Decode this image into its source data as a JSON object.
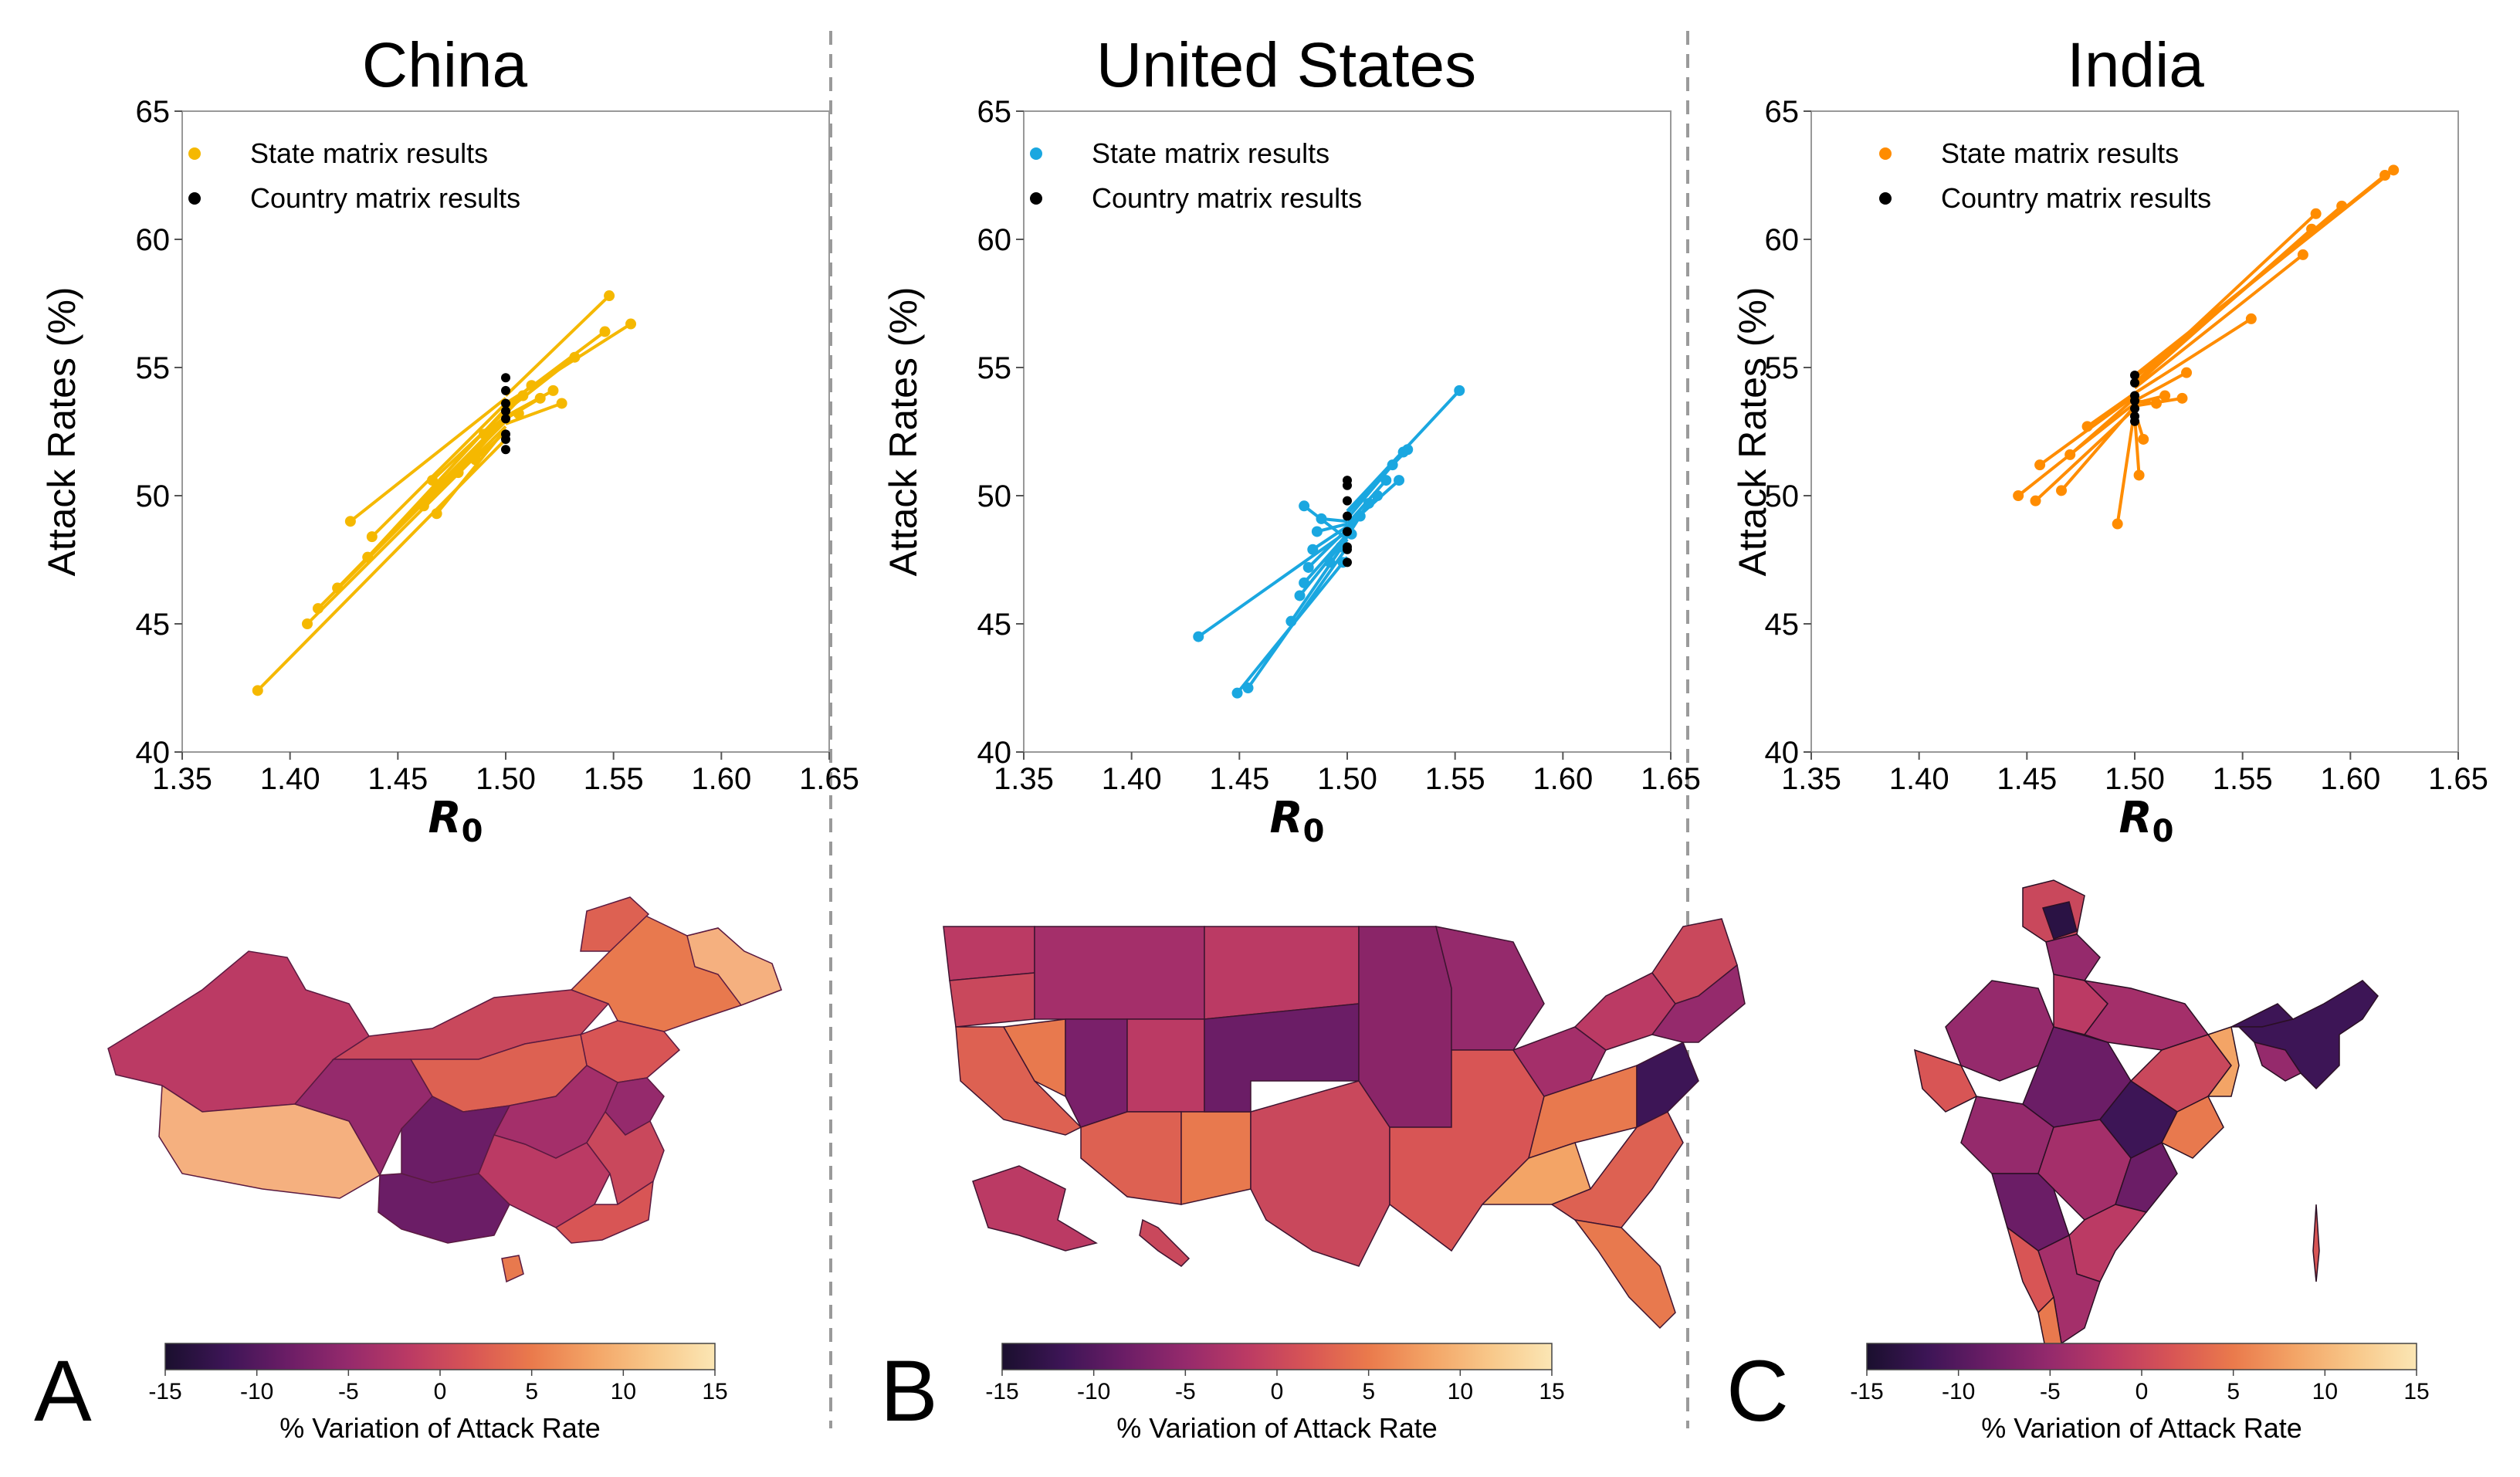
{
  "chart_data": [
    {
      "type": "scatter",
      "panel_label": "A",
      "title": "China",
      "xlabel": "R",
      "xlabel_sub": "0",
      "ylabel": "Attack Rates (%)",
      "xlim": [
        1.35,
        1.65
      ],
      "ylim": [
        40,
        65
      ],
      "xticks": [
        "1.35",
        "1.40",
        "1.45",
        "1.50",
        "1.55",
        "1.60",
        "1.65"
      ],
      "yticks": [
        "40",
        "45",
        "50",
        "55",
        "60",
        "65"
      ],
      "legend": [
        "State matrix results",
        "Country matrix results"
      ],
      "state_color": "#f5b800",
      "country_color": "#000000",
      "state_points": [
        [
          1.385,
          42.4
        ],
        [
          1.408,
          45.0
        ],
        [
          1.413,
          45.6
        ],
        [
          1.422,
          46.4
        ],
        [
          1.428,
          49.0
        ],
        [
          1.436,
          47.6
        ],
        [
          1.438,
          48.4
        ],
        [
          1.462,
          49.6
        ],
        [
          1.466,
          50.6
        ],
        [
          1.468,
          49.3
        ],
        [
          1.478,
          50.9
        ],
        [
          1.486,
          51.4
        ],
        [
          1.49,
          52.4
        ],
        [
          1.508,
          53.9
        ],
        [
          1.512,
          54.3
        ],
        [
          1.516,
          53.8
        ],
        [
          1.522,
          54.1
        ],
        [
          1.526,
          53.6
        ],
        [
          1.532,
          55.4
        ],
        [
          1.546,
          56.4
        ],
        [
          1.548,
          57.8
        ],
        [
          1.558,
          56.7
        ],
        [
          1.506,
          53.2
        ]
      ],
      "country_points": [
        [
          1.5,
          51.8
        ],
        [
          1.5,
          52.4
        ],
        [
          1.5,
          53.0
        ],
        [
          1.5,
          53.6
        ],
        [
          1.5,
          54.1
        ],
        [
          1.5,
          54.6
        ],
        [
          1.5,
          52.2
        ],
        [
          1.5,
          53.3
        ]
      ],
      "links": [
        [
          [
            1.385,
            42.4
          ],
          [
            1.5,
            52.2
          ]
        ],
        [
          [
            1.408,
            45.0
          ],
          [
            1.5,
            52.7
          ]
        ],
        [
          [
            1.413,
            45.6
          ],
          [
            1.5,
            52.9
          ]
        ],
        [
          [
            1.422,
            46.4
          ],
          [
            1.5,
            53.1
          ]
        ],
        [
          [
            1.428,
            49.0
          ],
          [
            1.5,
            53.8
          ]
        ],
        [
          [
            1.436,
            47.6
          ],
          [
            1.5,
            53.4
          ]
        ],
        [
          [
            1.438,
            48.4
          ],
          [
            1.5,
            53.6
          ]
        ],
        [
          [
            1.462,
            49.6
          ],
          [
            1.5,
            53.0
          ]
        ],
        [
          [
            1.466,
            50.6
          ],
          [
            1.5,
            53.3
          ]
        ],
        [
          [
            1.468,
            49.3
          ],
          [
            1.5,
            52.6
          ]
        ],
        [
          [
            1.478,
            50.9
          ],
          [
            1.5,
            53.0
          ]
        ],
        [
          [
            1.486,
            51.4
          ],
          [
            1.5,
            52.5
          ]
        ],
        [
          [
            1.49,
            52.4
          ],
          [
            1.5,
            53.1
          ]
        ],
        [
          [
            1.508,
            53.9
          ],
          [
            1.5,
            53.2
          ]
        ],
        [
          [
            1.512,
            54.3
          ],
          [
            1.5,
            53.4
          ]
        ],
        [
          [
            1.516,
            53.8
          ],
          [
            1.5,
            53.0
          ]
        ],
        [
          [
            1.522,
            54.1
          ],
          [
            1.5,
            53.1
          ]
        ],
        [
          [
            1.526,
            53.6
          ],
          [
            1.5,
            52.8
          ]
        ],
        [
          [
            1.532,
            55.4
          ],
          [
            1.5,
            53.3
          ]
        ],
        [
          [
            1.546,
            56.4
          ],
          [
            1.5,
            53.5
          ]
        ],
        [
          [
            1.548,
            57.8
          ],
          [
            1.5,
            53.9
          ]
        ],
        [
          [
            1.558,
            56.7
          ],
          [
            1.5,
            53.6
          ]
        ]
      ]
    },
    {
      "type": "scatter",
      "panel_label": "B",
      "title": "United States",
      "xlabel": "R",
      "xlabel_sub": "0",
      "ylabel": "Attack Rates (%)",
      "xlim": [
        1.35,
        1.65
      ],
      "ylim": [
        40,
        65
      ],
      "xticks": [
        "1.35",
        "1.40",
        "1.45",
        "1.50",
        "1.55",
        "1.60",
        "1.65"
      ],
      "yticks": [
        "40",
        "45",
        "50",
        "55",
        "60",
        "65"
      ],
      "legend": [
        "State matrix results",
        "Country matrix results"
      ],
      "state_color": "#1aa7e0",
      "country_color": "#000000",
      "state_points": [
        [
          1.431,
          44.5
        ],
        [
          1.449,
          42.3
        ],
        [
          1.454,
          42.5
        ],
        [
          1.474,
          45.1
        ],
        [
          1.478,
          46.1
        ],
        [
          1.48,
          46.6
        ],
        [
          1.482,
          47.2
        ],
        [
          1.484,
          47.9
        ],
        [
          1.48,
          49.6
        ],
        [
          1.486,
          48.6
        ],
        [
          1.488,
          49.1
        ],
        [
          1.492,
          47.4
        ],
        [
          1.497,
          48.0
        ],
        [
          1.506,
          49.2
        ],
        [
          1.51,
          49.7
        ],
        [
          1.514,
          50.0
        ],
        [
          1.518,
          50.6
        ],
        [
          1.521,
          51.2
        ],
        [
          1.526,
          51.7
        ],
        [
          1.524,
          50.6
        ],
        [
          1.528,
          51.8
        ],
        [
          1.552,
          54.1
        ],
        [
          1.498,
          47.4
        ],
        [
          1.502,
          48.5
        ]
      ],
      "country_points": [
        [
          1.5,
          47.4
        ],
        [
          1.5,
          48.0
        ],
        [
          1.5,
          48.6
        ],
        [
          1.5,
          49.2
        ],
        [
          1.5,
          49.8
        ],
        [
          1.5,
          50.4
        ],
        [
          1.5,
          50.6
        ],
        [
          1.5,
          47.9
        ]
      ],
      "links": [
        [
          [
            1.431,
            44.5
          ],
          [
            1.5,
            48.6
          ]
        ],
        [
          [
            1.449,
            42.3
          ],
          [
            1.5,
            47.6
          ]
        ],
        [
          [
            1.454,
            42.5
          ],
          [
            1.5,
            48.0
          ]
        ],
        [
          [
            1.474,
            45.1
          ],
          [
            1.5,
            48.3
          ]
        ],
        [
          [
            1.478,
            46.1
          ],
          [
            1.5,
            48.4
          ]
        ],
        [
          [
            1.48,
            46.6
          ],
          [
            1.5,
            48.5
          ]
        ],
        [
          [
            1.482,
            47.2
          ],
          [
            1.5,
            48.7
          ]
        ],
        [
          [
            1.484,
            47.9
          ],
          [
            1.5,
            48.8
          ]
        ],
        [
          [
            1.48,
            49.6
          ],
          [
            1.5,
            48.3
          ]
        ],
        [
          [
            1.486,
            48.6
          ],
          [
            1.5,
            48.9
          ]
        ],
        [
          [
            1.488,
            49.1
          ],
          [
            1.5,
            49.0
          ]
        ],
        [
          [
            1.506,
            49.2
          ],
          [
            1.5,
            48.4
          ]
        ],
        [
          [
            1.51,
            49.7
          ],
          [
            1.5,
            48.6
          ]
        ],
        [
          [
            1.514,
            50.0
          ],
          [
            1.5,
            48.7
          ]
        ],
        [
          [
            1.518,
            50.6
          ],
          [
            1.5,
            48.9
          ]
        ],
        [
          [
            1.521,
            51.2
          ],
          [
            1.5,
            49.1
          ]
        ],
        [
          [
            1.526,
            51.7
          ],
          [
            1.5,
            49.3
          ]
        ],
        [
          [
            1.524,
            50.6
          ],
          [
            1.5,
            48.8
          ]
        ],
        [
          [
            1.528,
            51.8
          ],
          [
            1.5,
            49.4
          ]
        ],
        [
          [
            1.552,
            54.1
          ],
          [
            1.5,
            49.4
          ]
        ]
      ]
    },
    {
      "type": "scatter",
      "panel_label": "C",
      "title": "India",
      "xlabel": "R",
      "xlabel_sub": "0",
      "ylabel": "Attack Rates (%)",
      "xlim": [
        1.35,
        1.65
      ],
      "ylim": [
        40,
        65
      ],
      "xticks": [
        "1.35",
        "1.40",
        "1.45",
        "1.50",
        "1.55",
        "1.60",
        "1.65"
      ],
      "yticks": [
        "40",
        "45",
        "50",
        "55",
        "60",
        "65"
      ],
      "legend": [
        "State matrix results",
        "Country matrix results"
      ],
      "state_color": "#ff8c00",
      "country_color": "#000000",
      "state_points": [
        [
          1.446,
          50.0
        ],
        [
          1.454,
          49.8
        ],
        [
          1.456,
          51.2
        ],
        [
          1.466,
          50.2
        ],
        [
          1.47,
          51.6
        ],
        [
          1.478,
          52.7
        ],
        [
          1.492,
          48.9
        ],
        [
          1.502,
          50.8
        ],
        [
          1.504,
          52.2
        ],
        [
          1.51,
          53.6
        ],
        [
          1.514,
          53.9
        ],
        [
          1.522,
          53.8
        ],
        [
          1.524,
          54.8
        ],
        [
          1.554,
          56.9
        ],
        [
          1.578,
          59.4
        ],
        [
          1.582,
          60.4
        ],
        [
          1.584,
          61.0
        ],
        [
          1.596,
          61.3
        ],
        [
          1.616,
          62.5
        ],
        [
          1.62,
          62.7
        ]
      ],
      "country_points": [
        [
          1.5,
          52.9
        ],
        [
          1.5,
          53.4
        ],
        [
          1.5,
          53.9
        ],
        [
          1.5,
          54.4
        ],
        [
          1.5,
          54.7
        ],
        [
          1.5,
          53.1
        ],
        [
          1.5,
          53.7
        ]
      ],
      "links": [
        [
          [
            1.446,
            50.0
          ],
          [
            1.5,
            53.6
          ]
        ],
        [
          [
            1.454,
            49.8
          ],
          [
            1.5,
            53.4
          ]
        ],
        [
          [
            1.456,
            51.2
          ],
          [
            1.5,
            53.9
          ]
        ],
        [
          [
            1.466,
            50.2
          ],
          [
            1.5,
            53.5
          ]
        ],
        [
          [
            1.47,
            51.6
          ],
          [
            1.5,
            53.8
          ]
        ],
        [
          [
            1.478,
            52.7
          ],
          [
            1.5,
            54.0
          ]
        ],
        [
          [
            1.492,
            48.9
          ],
          [
            1.5,
            53.4
          ]
        ],
        [
          [
            1.502,
            50.8
          ],
          [
            1.5,
            53.1
          ]
        ],
        [
          [
            1.504,
            52.2
          ],
          [
            1.5,
            53.3
          ]
        ],
        [
          [
            1.51,
            53.6
          ],
          [
            1.5,
            53.7
          ]
        ],
        [
          [
            1.514,
            53.9
          ],
          [
            1.5,
            53.6
          ]
        ],
        [
          [
            1.522,
            53.8
          ],
          [
            1.5,
            53.5
          ]
        ],
        [
          [
            1.524,
            54.8
          ],
          [
            1.5,
            53.7
          ]
        ],
        [
          [
            1.554,
            56.9
          ],
          [
            1.5,
            54.0
          ]
        ],
        [
          [
            1.578,
            59.4
          ],
          [
            1.5,
            54.2
          ]
        ],
        [
          [
            1.582,
            60.4
          ],
          [
            1.5,
            54.3
          ]
        ],
        [
          [
            1.584,
            61.0
          ],
          [
            1.5,
            54.4
          ]
        ],
        [
          [
            1.596,
            61.3
          ],
          [
            1.5,
            54.4
          ]
        ],
        [
          [
            1.616,
            62.5
          ],
          [
            1.5,
            54.6
          ]
        ],
        [
          [
            1.62,
            62.7
          ],
          [
            1.5,
            54.7
          ]
        ]
      ]
    }
  ],
  "colorbar": {
    "label": "% Variation of Attack Rate",
    "range": [
      -15,
      15
    ],
    "ticks": [
      "-15",
      "-10",
      "-5",
      "0",
      "5",
      "10",
      "15"
    ],
    "colormap": [
      "#1a0f2e",
      "#3d1556",
      "#6b1d66",
      "#952a6c",
      "#bb3a64",
      "#d85555",
      "#ea7a4c",
      "#f3a466",
      "#f8c88a",
      "#fbe6b4"
    ]
  },
  "maps": {
    "china": {
      "name": "China",
      "colors": [
        "#bb3a64",
        "#d85555",
        "#f5b07f",
        "#e8794e",
        "#952a6c",
        "#c9485c",
        "#6b1d66",
        "#dd6152",
        "#a42f6a",
        "#f5b07f"
      ]
    },
    "us": {
      "name": "United States",
      "colors": [
        "#bb3a64",
        "#c9485c",
        "#8a2568",
        "#6b1d66",
        "#dd6152",
        "#e8794e",
        "#a42f6a",
        "#d85555",
        "#f3a466",
        "#7a206a"
      ]
    },
    "india": {
      "name": "India",
      "colors": [
        "#952a6c",
        "#6b1d66",
        "#3d1556",
        "#bb3a64",
        "#d85555",
        "#e8794e",
        "#a42f6a",
        "#f3a466",
        "#2a1244",
        "#c9485c"
      ]
    }
  }
}
